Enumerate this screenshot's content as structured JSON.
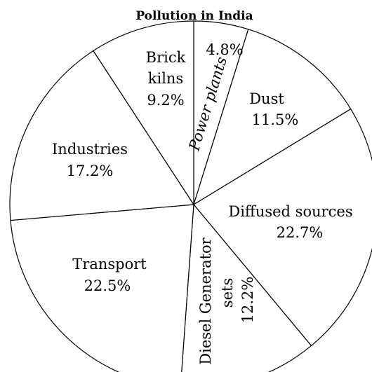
{
  "chart_data": {
    "type": "pie",
    "title": "Pollution in India",
    "start_angle_deg": 0,
    "direction": "clockwise",
    "slices": [
      {
        "label": "Power plants",
        "value": 4.8,
        "value_label": "4.8%"
      },
      {
        "label": "Dust",
        "value": 11.5,
        "value_label": "11.5%"
      },
      {
        "label": "Diffused sources",
        "value": 22.7,
        "value_label": "22.7%"
      },
      {
        "label": "Diesel Generator sets",
        "value": 12.2,
        "value_label": "12.2%"
      },
      {
        "label": "Transport",
        "value": 22.5,
        "value_label": "22.5%"
      },
      {
        "label": "Industries",
        "value": 17.2,
        "value_label": "17.2%"
      },
      {
        "label": "Brick kilns",
        "value": 9.2,
        "value_label": "9.2%"
      }
    ]
  }
}
